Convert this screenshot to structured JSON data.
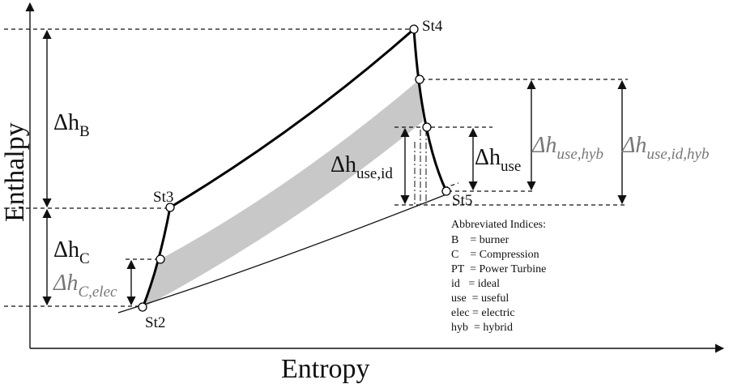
{
  "axes": {
    "x_label": "Entropy",
    "y_label": "Enthalpy"
  },
  "states": [
    {
      "id": "st2",
      "label": "St2"
    },
    {
      "id": "st3",
      "label": "St3"
    },
    {
      "id": "st4",
      "label": "St4"
    },
    {
      "id": "st5",
      "label": "St5"
    }
  ],
  "deltas": {
    "burner": {
      "symbol": "Δh",
      "sub": "B"
    },
    "compression": {
      "symbol": "Δh",
      "sub": "C"
    },
    "comp_elec": {
      "symbol": "Δh",
      "sub": "C,elec"
    },
    "use_id": {
      "symbol": "Δh",
      "sub": "use,id"
    },
    "use": {
      "symbol": "Δh",
      "sub": "use"
    },
    "use_hyb": {
      "symbol": "Δh",
      "sub": "use,hyb"
    },
    "use_id_hyb": {
      "symbol": "Δh",
      "sub": "use,id,hyb"
    }
  },
  "legend": {
    "title": "Abbreviated Indices:",
    "items": [
      "B    = burner",
      "C    = Compression",
      "PT  = Power Turbine",
      "id   = ideal",
      "use  = useful",
      "elec = electric",
      "hyb  = hybrid"
    ]
  },
  "colors": {
    "band": "#c8c8c8",
    "line": "#000000",
    "gray_text": "#777777"
  }
}
